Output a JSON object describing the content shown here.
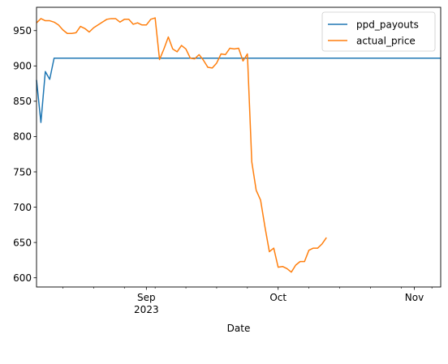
{
  "chart_data": {
    "type": "line",
    "title": "",
    "xlabel": "Date",
    "ylabel": "",
    "x_type": "date",
    "xlim": [
      "2023-08-07",
      "2023-11-07"
    ],
    "ylim": [
      587,
      983
    ],
    "grid": false,
    "legend_position": "top-right",
    "x_major_ticks": [
      {
        "date": "2023-09-01",
        "label": "Sep",
        "sublabel": "2023"
      },
      {
        "date": "2023-10-01",
        "label": "Oct",
        "sublabel": ""
      },
      {
        "date": "2023-11-01",
        "label": "Nov",
        "sublabel": ""
      }
    ],
    "x_minor_ticks": [
      "2023-08-13",
      "2023-08-20",
      "2023-08-27",
      "2023-09-03",
      "2023-09-10",
      "2023-09-17",
      "2023-09-24",
      "2023-10-08",
      "2023-10-15",
      "2023-10-22",
      "2023-10-29",
      "2023-11-05"
    ],
    "y_ticks": [
      600,
      650,
      700,
      750,
      800,
      850,
      900,
      950
    ],
    "series": [
      {
        "name": "ppd_payouts",
        "color": "#1f77b4",
        "points": [
          [
            "2023-08-07",
            880
          ],
          [
            "2023-08-08",
            820
          ],
          [
            "2023-08-09",
            892
          ],
          [
            "2023-08-10",
            881
          ],
          [
            "2023-08-11",
            911
          ],
          [
            "2023-08-18",
            911
          ],
          [
            "2023-09-01",
            911
          ],
          [
            "2023-10-01",
            911
          ],
          [
            "2023-11-01",
            911
          ],
          [
            "2023-11-07",
            911
          ]
        ]
      },
      {
        "name": "actual_price",
        "color": "#ff7f0e",
        "points": [
          [
            "2023-08-07",
            961
          ],
          [
            "2023-08-08",
            967
          ],
          [
            "2023-08-09",
            964
          ],
          [
            "2023-08-10",
            964
          ],
          [
            "2023-08-11",
            962
          ],
          [
            "2023-08-12",
            958
          ],
          [
            "2023-08-13",
            951
          ],
          [
            "2023-08-14",
            946
          ],
          [
            "2023-08-15",
            946
          ],
          [
            "2023-08-16",
            947
          ],
          [
            "2023-08-17",
            956
          ],
          [
            "2023-08-18",
            953
          ],
          [
            "2023-08-19",
            948
          ],
          [
            "2023-08-20",
            954
          ],
          [
            "2023-08-21",
            958
          ],
          [
            "2023-08-22",
            962
          ],
          [
            "2023-08-23",
            966
          ],
          [
            "2023-08-24",
            967
          ],
          [
            "2023-08-25",
            967
          ],
          [
            "2023-08-26",
            962
          ],
          [
            "2023-08-27",
            966
          ],
          [
            "2023-08-28",
            966
          ],
          [
            "2023-08-29",
            959
          ],
          [
            "2023-08-30",
            961
          ],
          [
            "2023-08-31",
            958
          ],
          [
            "2023-09-01",
            958
          ],
          [
            "2023-09-02",
            966
          ],
          [
            "2023-09-03",
            968
          ],
          [
            "2023-09-04",
            909
          ],
          [
            "2023-09-05",
            924
          ],
          [
            "2023-09-06",
            941
          ],
          [
            "2023-09-07",
            924
          ],
          [
            "2023-09-08",
            920
          ],
          [
            "2023-09-09",
            929
          ],
          [
            "2023-09-10",
            924
          ],
          [
            "2023-09-11",
            911
          ],
          [
            "2023-09-12",
            910
          ],
          [
            "2023-09-13",
            916
          ],
          [
            "2023-09-14",
            908
          ],
          [
            "2023-09-15",
            898
          ],
          [
            "2023-09-16",
            897
          ],
          [
            "2023-09-17",
            904
          ],
          [
            "2023-09-18",
            917
          ],
          [
            "2023-09-19",
            916
          ],
          [
            "2023-09-20",
            925
          ],
          [
            "2023-09-21",
            924
          ],
          [
            "2023-09-22",
            925
          ],
          [
            "2023-09-23",
            907
          ],
          [
            "2023-09-24",
            917
          ],
          [
            "2023-09-25",
            764
          ],
          [
            "2023-09-26",
            724
          ],
          [
            "2023-09-27",
            710
          ],
          [
            "2023-09-28",
            672
          ],
          [
            "2023-09-29",
            637
          ],
          [
            "2023-09-30",
            642
          ],
          [
            "2023-10-01",
            615
          ],
          [
            "2023-10-02",
            616
          ],
          [
            "2023-10-03",
            613
          ],
          [
            "2023-10-04",
            608
          ],
          [
            "2023-10-05",
            618
          ],
          [
            "2023-10-06",
            623
          ],
          [
            "2023-10-07",
            623
          ],
          [
            "2023-10-08",
            639
          ],
          [
            "2023-10-09",
            642
          ],
          [
            "2023-10-10",
            642
          ],
          [
            "2023-10-11",
            648
          ],
          [
            "2023-10-12",
            657
          ]
        ]
      }
    ]
  }
}
